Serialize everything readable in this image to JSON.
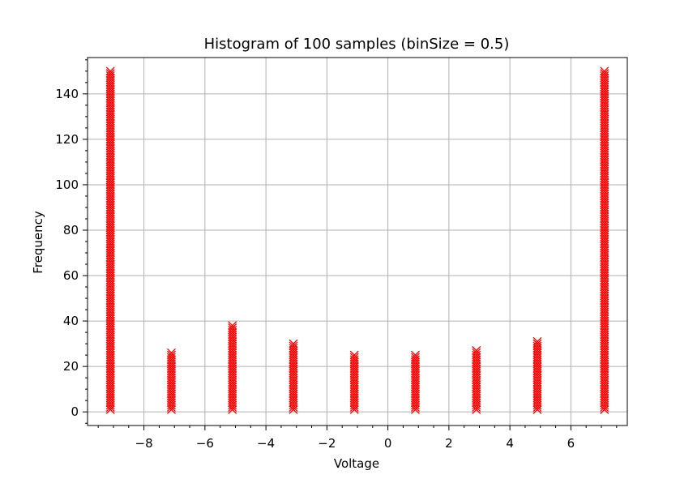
{
  "chart_data": {
    "type": "scatter",
    "title": "Histogram of 100 samples (binSize = 0.5)",
    "xlabel": "Voltage",
    "ylabel": "Frequency",
    "xlim": [
      -9.85,
      7.85
    ],
    "ylim": [
      -6,
      156
    ],
    "xticks": [
      -8,
      -6,
      -4,
      -2,
      0,
      2,
      4,
      6
    ],
    "yticks": [
      0,
      20,
      40,
      60,
      80,
      100,
      120,
      140
    ],
    "grid": true,
    "marker": "x",
    "color": "#ff0000",
    "series": [
      {
        "x": -9.1,
        "max_frequency": 150
      },
      {
        "x": -7.1,
        "max_frequency": 26
      },
      {
        "x": -5.1,
        "max_frequency": 38
      },
      {
        "x": -3.1,
        "max_frequency": 30
      },
      {
        "x": -1.1,
        "max_frequency": 25
      },
      {
        "x": 0.9,
        "max_frequency": 25
      },
      {
        "x": 2.9,
        "max_frequency": 27
      },
      {
        "x": 4.9,
        "max_frequency": 31
      },
      {
        "x": 7.1,
        "max_frequency": 150
      }
    ]
  }
}
